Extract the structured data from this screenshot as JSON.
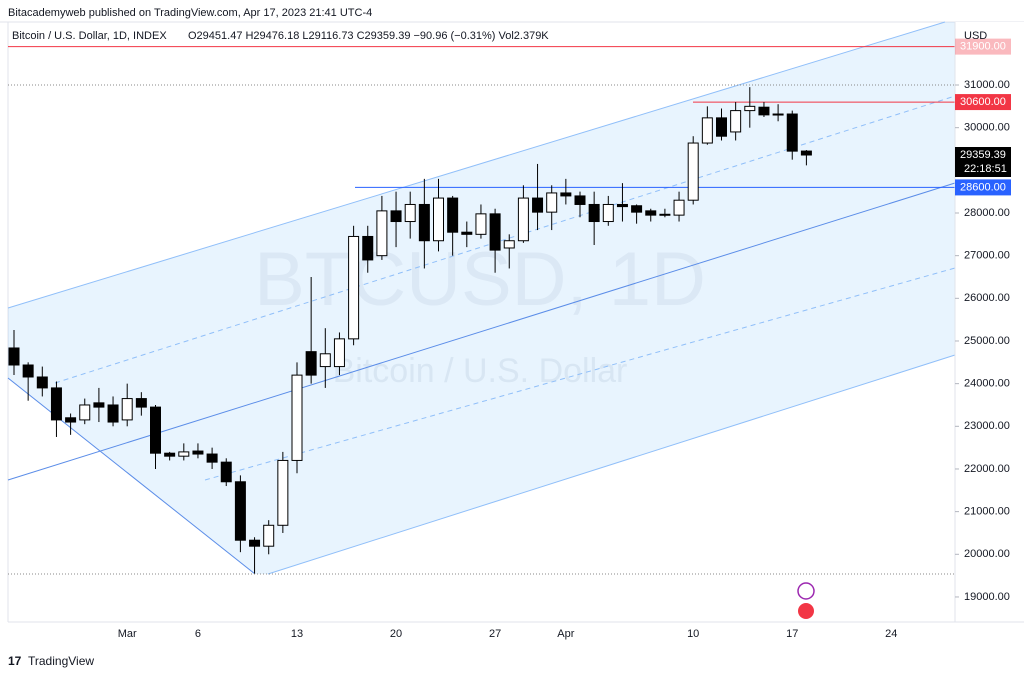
{
  "header": {
    "publisher": "Bitacademyweb published on TradingView.com, Apr 17, 2023 21:41 UTC-4",
    "brand": "TradingView"
  },
  "chart_data": {
    "type": "candlestick",
    "symbol": "Bitcoin / U.S. Dollar, 1D, INDEX",
    "legend_values": "O29451.47 H29476.18 L29116.73 C29359.39 −90.96 (−0.31%) Vol2.379K",
    "watermark": "BTCUSD, 1D",
    "watermark_sub": "Bitcoin / U.S. Dollar",
    "currency": "USD",
    "categories": [
      null,
      null,
      null,
      null,
      null,
      null,
      null,
      null,
      "Mar",
      null,
      null,
      null,
      null,
      "6",
      null,
      null,
      null,
      null,
      null,
      null,
      "13",
      null,
      null,
      null,
      null,
      null,
      null,
      "20",
      null,
      null,
      null,
      null,
      null,
      null,
      "27",
      null,
      null,
      null,
      null,
      "Apr",
      null,
      null,
      null,
      null,
      null,
      null,
      null,
      null,
      "10",
      null,
      null,
      null,
      null,
      null,
      null,
      "17",
      null,
      null,
      null,
      null,
      null,
      null,
      "24"
    ],
    "open": [
      24836,
      24437,
      24156,
      23900,
      23200,
      23150,
      23550,
      23500,
      23150,
      23650,
      23450,
      22370,
      22300,
      22420,
      22350,
      22160,
      21700,
      20330,
      20190,
      20680,
      22200,
      24750,
      24400,
      24400,
      25050,
      27450,
      27000,
      28050,
      27800,
      28200,
      27350,
      28350,
      27550,
      27500,
      27980,
      27180,
      27350,
      28350,
      28020,
      28470,
      28400,
      28200,
      27800,
      28200,
      28170,
      28050,
      27950,
      27950,
      28300,
      29640,
      30230,
      29900,
      30400,
      30480,
      30300,
      30320,
      29451.47,
      null,
      null,
      null,
      null,
      null,
      null
    ],
    "high": [
      25257,
      24500,
      24400,
      24050,
      23300,
      23650,
      23900,
      23700,
      24000,
      23800,
      23500,
      22400,
      22600,
      22600,
      22500,
      22250,
      21850,
      20400,
      20800,
      22400,
      24500,
      26500,
      25300,
      25200,
      27700,
      27700,
      28400,
      28500,
      28500,
      28800,
      28800,
      28400,
      27800,
      28200,
      28100,
      27500,
      28650,
      29150,
      28650,
      28800,
      28500,
      28500,
      28400,
      28700,
      28200,
      28100,
      28100,
      28500,
      29800,
      30500,
      30450,
      30600,
      30950,
      30600,
      30550,
      30400,
      29476.18,
      null,
      null,
      null,
      null,
      null,
      null
    ],
    "low": [
      24203,
      23600,
      23700,
      22750,
      22800,
      23050,
      23100,
      23000,
      23000,
      23250,
      22000,
      22200,
      22200,
      22250,
      22000,
      21600,
      20050,
      19550,
      20000,
      20500,
      21900,
      24000,
      23900,
      24200,
      24900,
      26600,
      26900,
      27200,
      27400,
      26700,
      27100,
      27000,
      27200,
      27400,
      26600,
      26700,
      27300,
      27600,
      27600,
      28200,
      27900,
      27250,
      27700,
      27800,
      27750,
      27800,
      27900,
      27800,
      28200,
      29600,
      29700,
      29700,
      30000,
      30250,
      30150,
      29250,
      29116.73,
      null,
      null,
      null,
      null,
      null,
      null
    ],
    "close": [
      24437,
      24156,
      23900,
      23150,
      23100,
      23500,
      23450,
      23100,
      23650,
      23450,
      22370,
      22300,
      22400,
      22350,
      22160,
      21700,
      20330,
      20190,
      20680,
      22200,
      24200,
      24200,
      24700,
      25050,
      27450,
      26900,
      28050,
      27800,
      28200,
      27350,
      28350,
      27550,
      27500,
      27980,
      27130,
      27350,
      28350,
      28020,
      28470,
      28400,
      28200,
      27800,
      28200,
      28150,
      28020,
      27950,
      27970,
      28300,
      29640,
      30230,
      29800,
      30400,
      30500,
      30300,
      30320,
      29450,
      29359.39,
      null,
      null,
      null,
      null,
      null,
      null
    ],
    "up_color": "#ffffff",
    "down_color": "#000000",
    "wick_color": "#000000",
    "ylim": [
      18413,
      32477
    ],
    "yticks": [
      {
        "value": 19000,
        "label": "19000.00"
      },
      {
        "value": 20000,
        "label": "20000.00"
      },
      {
        "value": 21000,
        "label": "21000.00"
      },
      {
        "value": 22000,
        "label": "22000.00"
      },
      {
        "value": 23000,
        "label": "23000.00"
      },
      {
        "value": 24000,
        "label": "24000.00"
      },
      {
        "value": 25000,
        "label": "25000.00"
      },
      {
        "value": 26000,
        "label": "26000.00"
      },
      {
        "value": 27000,
        "label": "27000.00"
      },
      {
        "value": 28000,
        "label": "28000.00"
      },
      {
        "value": 29000,
        "label": "29000.00"
      },
      {
        "value": 30000,
        "label": "30000.00"
      },
      {
        "value": 31000,
        "label": "31000.00"
      }
    ],
    "hlines": [
      {
        "value": 31900,
        "label": "31900.00",
        "color": "#f23645"
      },
      {
        "value": 30600,
        "label": "30600.00",
        "color": "#f23645"
      },
      {
        "value": 28600,
        "label": "28600.00",
        "color": "#2962ff"
      }
    ],
    "last_price": {
      "value": 29359.39,
      "label": "29359.39",
      "countdown": "22:18:51"
    }
  }
}
